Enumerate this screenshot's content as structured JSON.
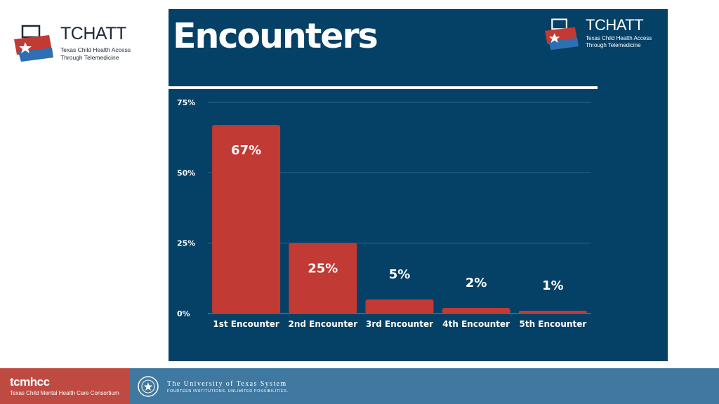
{
  "header": {
    "brand": "TCHATT",
    "tagline": "Texas Child Health Access Through Telemedicine"
  },
  "slide": {
    "title": "Encounters"
  },
  "colors": {
    "panel": "#054066",
    "bar": "#c13a33",
    "footer_left": "#bf4a42",
    "footer": "#3f78a0"
  },
  "chart_data": {
    "type": "bar",
    "categories": [
      "1st Encounter",
      "2nd Encounter",
      "3rd Encounter",
      "4th Encounter",
      "5th Encounter"
    ],
    "values": [
      67,
      25,
      5,
      2,
      1
    ],
    "data_labels": [
      "67%",
      "25%",
      "5%",
      "2%",
      "1%"
    ],
    "ylim": [
      0,
      75
    ],
    "yticks": [
      0,
      25,
      50,
      75
    ],
    "ytick_labels": [
      "0%",
      "25%",
      "50%",
      "75%"
    ],
    "grid": true,
    "legend": "none"
  },
  "footer": {
    "left_name": "tcmhcc",
    "left_sub": "Texas Child Mental Health Care Consortium",
    "ut_name": "The University of Texas System",
    "ut_motto": "FOURTEEN INSTITUTIONS. UNLIMITED POSSIBILITIES."
  }
}
